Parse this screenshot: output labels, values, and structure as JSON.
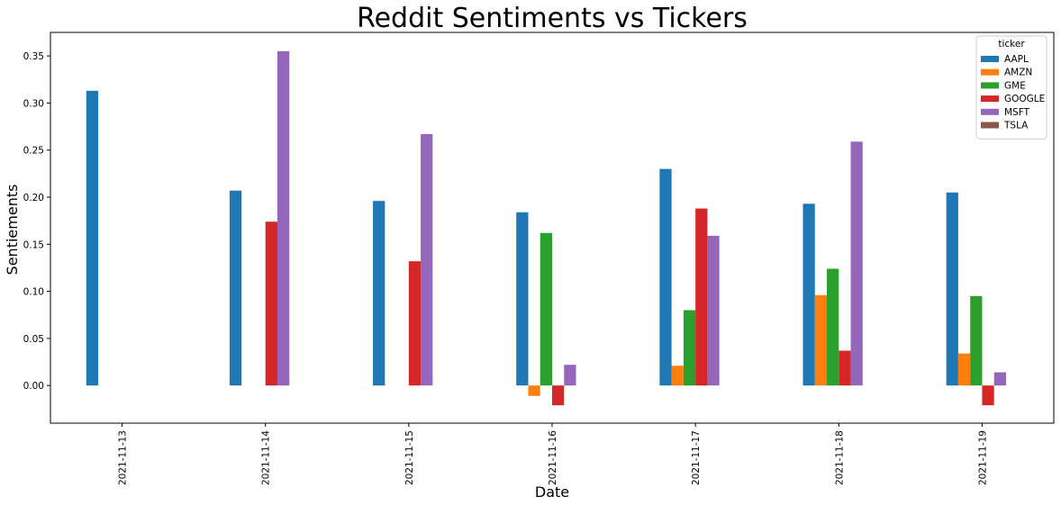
{
  "chart_data": {
    "type": "bar",
    "title": "Reddit Sentiments vs Tickers",
    "xlabel": "Date",
    "ylabel": "Sentiements",
    "legend_title": "ticker",
    "legend_position": "top-right",
    "grid": false,
    "ylim": [
      -0.04,
      0.375
    ],
    "yticks": [
      0.0,
      0.05,
      0.1,
      0.15,
      0.2,
      0.25,
      0.3,
      0.35
    ],
    "ytick_labels": [
      "0.00",
      "0.05",
      "0.10",
      "0.15",
      "0.20",
      "0.25",
      "0.30",
      "0.35"
    ],
    "categories": [
      "2021-11-13",
      "2021-11-14",
      "2021-11-15",
      "2021-11-16",
      "2021-11-17",
      "2021-11-18",
      "2021-11-19"
    ],
    "series": [
      {
        "name": "AAPL",
        "color": "#1f77b4",
        "values": [
          0.313,
          0.207,
          0.196,
          0.184,
          0.23,
          0.193,
          0.205
        ]
      },
      {
        "name": "AMZN",
        "color": "#ff7f0e",
        "values": [
          null,
          null,
          null,
          -0.011,
          0.021,
          0.096,
          0.034
        ]
      },
      {
        "name": "GME",
        "color": "#2ca02c",
        "values": [
          null,
          null,
          null,
          0.162,
          0.08,
          0.124,
          0.095
        ]
      },
      {
        "name": "GOOGLE",
        "color": "#d62728",
        "values": [
          null,
          0.174,
          0.132,
          -0.021,
          0.188,
          0.037,
          -0.021
        ]
      },
      {
        "name": "MSFT",
        "color": "#9467bd",
        "values": [
          null,
          0.355,
          0.267,
          0.022,
          0.159,
          0.259,
          0.014
        ]
      },
      {
        "name": "TSLA",
        "color": "#8c564b",
        "values": [
          null,
          null,
          null,
          null,
          null,
          null,
          null
        ]
      }
    ]
  }
}
